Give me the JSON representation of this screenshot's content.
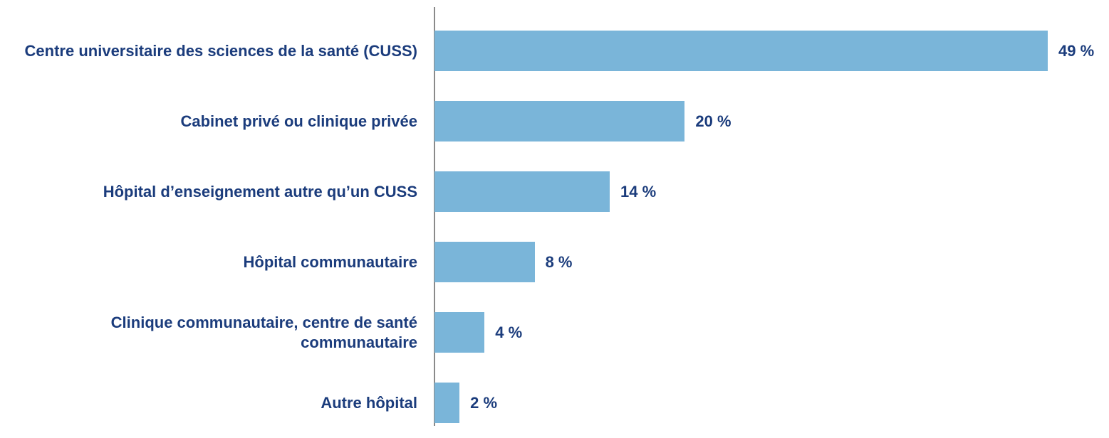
{
  "chart_data": {
    "type": "bar",
    "orientation": "horizontal",
    "categories": [
      "Centre universitaire des sciences de la santé (CUSS)",
      "Cabinet privé ou clinique privée",
      "Hôpital d’enseignement autre qu’un CUSS",
      "Hôpital communautaire",
      "Clinique communautaire, centre de santé communautaire",
      "Autre hôpital"
    ],
    "values": [
      49,
      20,
      14,
      8,
      4,
      2
    ],
    "value_labels": [
      "49 %",
      "20 %",
      "14 %",
      "8 %",
      "4 %",
      "2 %"
    ],
    "color": "#7ab5d9"
  }
}
